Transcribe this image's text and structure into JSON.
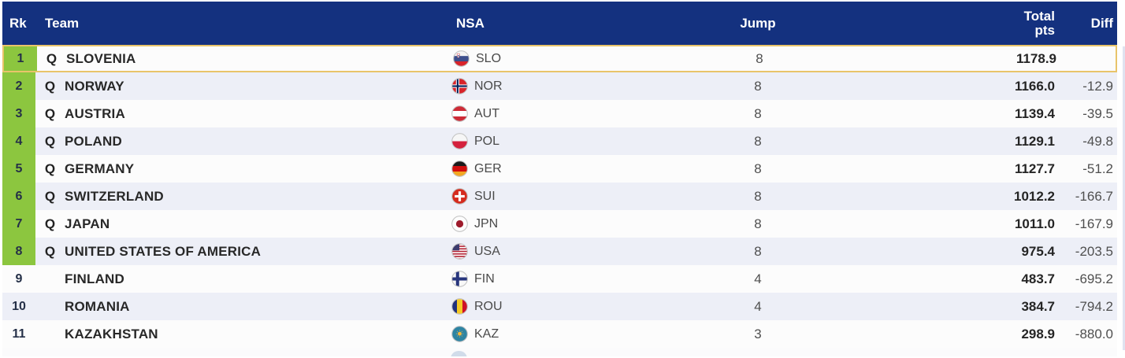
{
  "colors": {
    "header_bg": "#14317f",
    "header_text": "#ffffff",
    "qualified_green": "#8cc63f",
    "row_alt": "#edeff7",
    "row_white": "#fcfcfc",
    "selected_border": "#e9c46a"
  },
  "table": {
    "columns": {
      "rk": "Rk",
      "team": "Team",
      "nsa": "NSA",
      "jump": "Jump",
      "total_line1": "Total",
      "total_line2": "pts",
      "diff": "Diff"
    },
    "rows": [
      {
        "rank": "1",
        "q": "Q",
        "team": "SLOVENIA",
        "nsa": "SLO",
        "flag": "flag-slo-icon",
        "jump": "8",
        "total": "1178.9",
        "diff": "",
        "qualified": true,
        "selected": true
      },
      {
        "rank": "2",
        "q": "Q",
        "team": "NORWAY",
        "nsa": "NOR",
        "flag": "flag-nor-icon",
        "jump": "8",
        "total": "1166.0",
        "diff": "-12.9",
        "qualified": true,
        "selected": false
      },
      {
        "rank": "3",
        "q": "Q",
        "team": "AUSTRIA",
        "nsa": "AUT",
        "flag": "flag-aut-icon",
        "jump": "8",
        "total": "1139.4",
        "diff": "-39.5",
        "qualified": true,
        "selected": false
      },
      {
        "rank": "4",
        "q": "Q",
        "team": "POLAND",
        "nsa": "POL",
        "flag": "flag-pol-icon",
        "jump": "8",
        "total": "1129.1",
        "diff": "-49.8",
        "qualified": true,
        "selected": false
      },
      {
        "rank": "5",
        "q": "Q",
        "team": "GERMANY",
        "nsa": "GER",
        "flag": "flag-ger-icon",
        "jump": "8",
        "total": "1127.7",
        "diff": "-51.2",
        "qualified": true,
        "selected": false
      },
      {
        "rank": "6",
        "q": "Q",
        "team": "SWITZERLAND",
        "nsa": "SUI",
        "flag": "flag-sui-icon",
        "jump": "8",
        "total": "1012.2",
        "diff": "-166.7",
        "qualified": true,
        "selected": false
      },
      {
        "rank": "7",
        "q": "Q",
        "team": "JAPAN",
        "nsa": "JPN",
        "flag": "flag-jpn-icon",
        "jump": "8",
        "total": "1011.0",
        "diff": "-167.9",
        "qualified": true,
        "selected": false
      },
      {
        "rank": "8",
        "q": "Q",
        "team": "UNITED STATES OF AMERICA",
        "nsa": "USA",
        "flag": "flag-usa-icon",
        "jump": "8",
        "total": "975.4",
        "diff": "-203.5",
        "qualified": true,
        "selected": false
      },
      {
        "rank": "9",
        "q": "",
        "team": "FINLAND",
        "nsa": "FIN",
        "flag": "flag-fin-icon",
        "jump": "4",
        "total": "483.7",
        "diff": "-695.2",
        "qualified": false,
        "selected": false
      },
      {
        "rank": "10",
        "q": "",
        "team": "ROMANIA",
        "nsa": "ROU",
        "flag": "flag-rou-icon",
        "jump": "4",
        "total": "384.7",
        "diff": "-794.2",
        "qualified": false,
        "selected": false
      },
      {
        "rank": "11",
        "q": "",
        "team": "KAZAKHSTAN",
        "nsa": "KAZ",
        "flag": "flag-kaz-icon",
        "jump": "3",
        "total": "298.9",
        "diff": "-880.0",
        "qualified": false,
        "selected": false
      }
    ]
  }
}
